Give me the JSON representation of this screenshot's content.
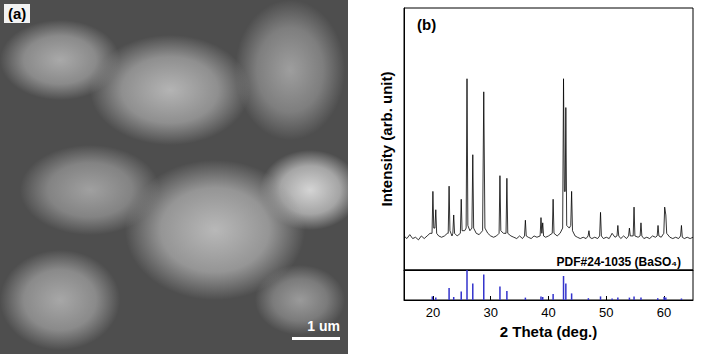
{
  "panel_a": {
    "label": "(a)",
    "scale_bar": "1 um"
  },
  "chart_data": [
    {
      "type": "line",
      "panel_label": "(b)",
      "ylabel": "Intensity (arb. unit)",
      "color": "#000000",
      "xlim": [
        15,
        65
      ],
      "ylim": [
        0,
        100
      ],
      "tick_labels": false,
      "x": [
        15.0,
        15.5,
        16.0,
        16.5,
        17.0,
        17.5,
        18.0,
        18.5,
        19.0,
        19.5,
        19.85,
        20.0,
        20.15,
        20.35,
        20.5,
        20.65,
        21.0,
        21.5,
        22.0,
        22.5,
        22.65,
        22.8,
        22.95,
        23.3,
        23.45,
        23.6,
        23.75,
        24.2,
        24.75,
        24.9,
        25.05,
        25.5,
        25.75,
        25.9,
        26.05,
        26.4,
        26.75,
        26.9,
        27.05,
        27.5,
        28.0,
        28.6,
        28.8,
        29.0,
        29.5,
        30.0,
        30.5,
        31.0,
        31.45,
        31.6,
        31.75,
        32.2,
        32.65,
        32.8,
        32.95,
        33.5,
        34.0,
        34.5,
        35.0,
        35.5,
        35.85,
        36.0,
        36.15,
        36.5,
        37.0,
        37.5,
        38.0,
        38.55,
        38.7,
        38.85,
        39.0,
        39.15,
        39.5,
        40.0,
        40.65,
        40.8,
        40.95,
        41.5,
        42.0,
        42.45,
        42.6,
        42.75,
        42.9,
        43.0,
        43.15,
        43.6,
        43.85,
        44.0,
        44.15,
        44.6,
        45.0,
        45.5,
        46.0,
        46.5,
        46.85,
        47.0,
        47.15,
        47.5,
        48.0,
        48.5,
        48.85,
        49.0,
        49.15,
        49.5,
        50.0,
        50.5,
        51.0,
        51.5,
        51.85,
        52.0,
        52.15,
        52.5,
        53.0,
        53.5,
        53.85,
        54.0,
        54.15,
        54.65,
        54.8,
        54.95,
        55.5,
        55.85,
        56.0,
        56.15,
        56.5,
        57.0,
        57.5,
        58.0,
        58.5,
        58.8,
        58.95,
        59.1,
        59.5,
        59.95,
        60.1,
        60.3,
        60.45,
        61.0,
        61.5,
        62.0,
        62.5,
        62.85,
        63.0,
        63.15,
        63.5,
        64.0,
        64.5,
        65.0
      ],
      "values": [
        13,
        12,
        13.5,
        12,
        12.5,
        11.5,
        13,
        12,
        13,
        14,
        14,
        30,
        16,
        16,
        23,
        14,
        13,
        12.5,
        13,
        14,
        14,
        32,
        15,
        13,
        14,
        21,
        14,
        13,
        14,
        27,
        15,
        15,
        16,
        73,
        17,
        15,
        16,
        44,
        16,
        14,
        13.5,
        15,
        68,
        16,
        14,
        13,
        12.5,
        13,
        14,
        36,
        15,
        14,
        14,
        35,
        14,
        13,
        12.5,
        12,
        13,
        12,
        13,
        19,
        13,
        12.5,
        12,
        13,
        12.5,
        13,
        20,
        14,
        18,
        13,
        12.5,
        13,
        14,
        27,
        14,
        13,
        14,
        16,
        73,
        30,
        30,
        62,
        17,
        16,
        17,
        30,
        15,
        13,
        12.5,
        12,
        12.5,
        12,
        13,
        15,
        12.5,
        12,
        12.5,
        12,
        13,
        22,
        13,
        12,
        12.5,
        12,
        14,
        12.5,
        13,
        17,
        13,
        12,
        13,
        12,
        13,
        16,
        13,
        13,
        24,
        13,
        12.5,
        13,
        18,
        13,
        12,
        12.5,
        12,
        13,
        12.5,
        13,
        17,
        13,
        12.5,
        14,
        24,
        21,
        14,
        12.5,
        12,
        12.5,
        12,
        13,
        17,
        12.5,
        12,
        12.5,
        12,
        12.5
      ]
    },
    {
      "type": "bar",
      "title": "PDF#24-1035 (BaSO₄)",
      "xlabel": "2 Theta (deg.)",
      "color": "#3333cc",
      "xlim": [
        15,
        65
      ],
      "ylim": [
        0,
        100
      ],
      "xticks": [
        20,
        30,
        40,
        50,
        60
      ],
      "tick_labels": "x",
      "x": [
        19.9,
        20.5,
        22.8,
        23.6,
        24.9,
        25.9,
        26.9,
        28.8,
        31.6,
        32.8,
        36.0,
        38.7,
        39.0,
        40.8,
        42.6,
        43.0,
        44.0,
        46.9,
        49.0,
        51.0,
        52.0,
        54.0,
        54.8,
        56.0,
        58.9,
        60.0,
        60.3,
        63.0
      ],
      "values": [
        12,
        8,
        40,
        10,
        28,
        100,
        55,
        85,
        45,
        30,
        8,
        12,
        10,
        20,
        80,
        55,
        22,
        6,
        12,
        5,
        8,
        8,
        12,
        8,
        6,
        10,
        8,
        5
      ]
    }
  ]
}
